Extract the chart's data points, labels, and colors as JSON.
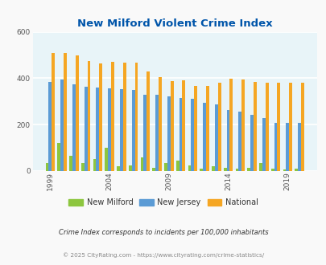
{
  "title": "New Milford Violent Crime Index",
  "years": [
    1999,
    2000,
    2001,
    2002,
    2003,
    2004,
    2005,
    2006,
    2007,
    2008,
    2009,
    2010,
    2011,
    2012,
    2013,
    2014,
    2015,
    2016,
    2017,
    2018,
    2019,
    2020
  ],
  "new_milford": [
    35,
    120,
    65,
    35,
    50,
    100,
    20,
    25,
    60,
    15,
    35,
    45,
    25,
    10,
    20,
    15,
    10,
    15,
    35,
    10,
    5,
    10
  ],
  "new_jersey": [
    383,
    393,
    375,
    362,
    360,
    355,
    352,
    348,
    328,
    328,
    320,
    314,
    311,
    295,
    288,
    262,
    257,
    243,
    228,
    209,
    209,
    209
  ],
  "national": [
    508,
    508,
    498,
    475,
    465,
    472,
    468,
    466,
    428,
    404,
    389,
    390,
    365,
    368,
    382,
    398,
    395,
    384,
    379,
    379,
    379,
    379
  ],
  "ylim": [
    0,
    600
  ],
  "yticks": [
    0,
    200,
    400,
    600
  ],
  "bar_colors": {
    "new_milford": "#8dc63f",
    "new_jersey": "#5b9bd5",
    "national": "#f5a623"
  },
  "background_color": "#e8f4f8",
  "title_color": "#0055aa",
  "legend_labels": [
    "New Milford",
    "New Jersey",
    "National"
  ],
  "footnote1": "Crime Index corresponds to incidents per 100,000 inhabitants",
  "footnote2": "© 2025 CityRating.com - https://www.cityrating.com/crime-statistics/",
  "xlabel_years": [
    1999,
    2004,
    2009,
    2014,
    2019
  ],
  "fig_facecolor": "#f9f9f9"
}
